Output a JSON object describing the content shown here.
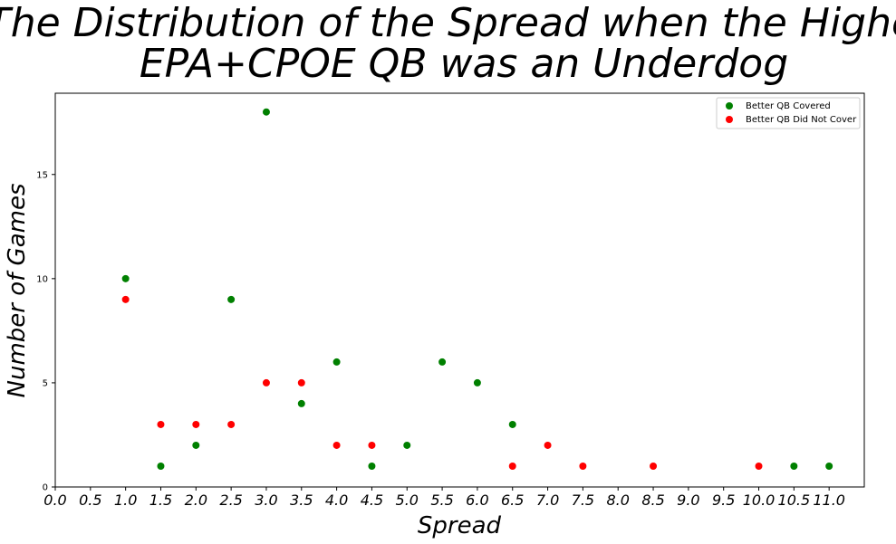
{
  "chart_data": {
    "type": "scatter",
    "title": [
      "The Distribution of the Spread when the Higher",
      "EPA+CPOE QB was an Underdog"
    ],
    "xlabel": "Spread",
    "ylabel": "Number of Games",
    "xlim": [
      0,
      11.5
    ],
    "ylim": [
      0,
      18.9
    ],
    "x_ticks": [
      "0.0",
      "0.5",
      "1.0",
      "1.5",
      "2.0",
      "2.5",
      "3.0",
      "3.5",
      "4.0",
      "4.5",
      "5.0",
      "5.5",
      "6.0",
      "6.5",
      "7.0",
      "7.5",
      "8.0",
      "8.5",
      "9.0",
      "9.5",
      "10.0",
      "10.5",
      "11.0"
    ],
    "y_ticks": [
      "0",
      "5",
      "10",
      "15"
    ],
    "legend_position": "top-right",
    "grid": false,
    "series": [
      {
        "name": "Better QB Covered",
        "color": "#008000",
        "points": [
          {
            "x": 1.0,
            "y": 10
          },
          {
            "x": 1.5,
            "y": 1
          },
          {
            "x": 2.0,
            "y": 2
          },
          {
            "x": 2.5,
            "y": 9
          },
          {
            "x": 3.0,
            "y": 18
          },
          {
            "x": 3.5,
            "y": 4
          },
          {
            "x": 4.0,
            "y": 6
          },
          {
            "x": 4.5,
            "y": 1
          },
          {
            "x": 5.0,
            "y": 2
          },
          {
            "x": 5.5,
            "y": 6
          },
          {
            "x": 6.0,
            "y": 5
          },
          {
            "x": 6.5,
            "y": 3
          },
          {
            "x": 10.5,
            "y": 1
          },
          {
            "x": 11.0,
            "y": 1
          }
        ]
      },
      {
        "name": "Better QB Did Not Cover",
        "color": "#ff0000",
        "points": [
          {
            "x": 1.0,
            "y": 9
          },
          {
            "x": 1.5,
            "y": 3
          },
          {
            "x": 2.0,
            "y": 3
          },
          {
            "x": 2.5,
            "y": 3
          },
          {
            "x": 3.0,
            "y": 5
          },
          {
            "x": 3.5,
            "y": 5
          },
          {
            "x": 4.0,
            "y": 2
          },
          {
            "x": 4.5,
            "y": 2
          },
          {
            "x": 6.5,
            "y": 1
          },
          {
            "x": 7.0,
            "y": 2
          },
          {
            "x": 7.5,
            "y": 1
          },
          {
            "x": 8.5,
            "y": 1
          },
          {
            "x": 10.0,
            "y": 1
          }
        ]
      }
    ]
  }
}
